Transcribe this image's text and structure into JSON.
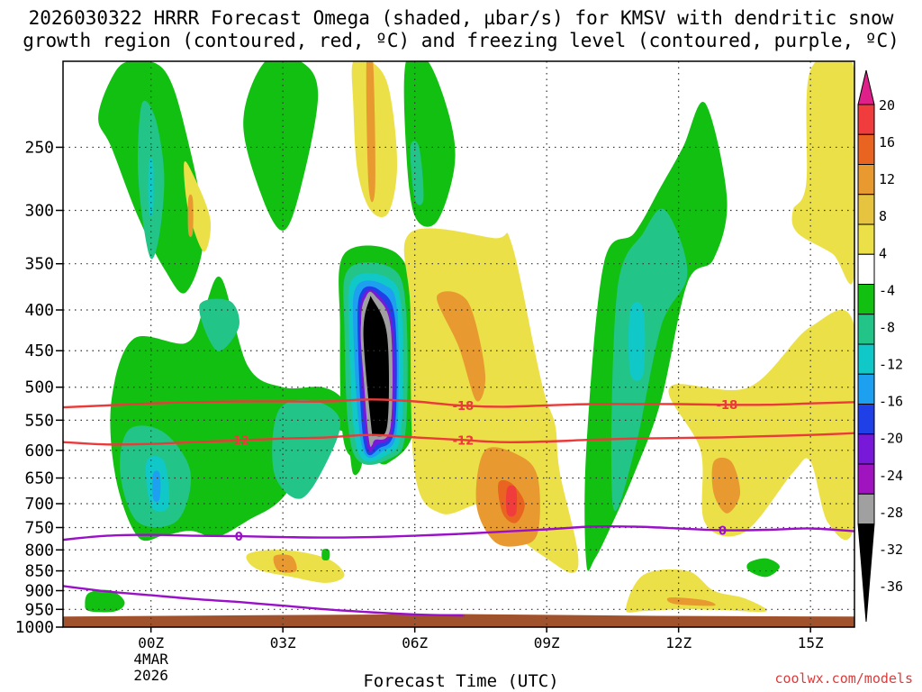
{
  "chart_data": {
    "type": "heatmap",
    "title_line1": "2026030322 HRRR Forecast Omega (shaded, µbar/s) for KMSV with dendritic snow",
    "title_line2": "growth region (contoured, red, ºC) and freezing level (contoured, purple, ºC)",
    "xlabel": "Forecast Time (UTC)",
    "credit": "coolwx.com/models",
    "xlim": [
      -2,
      16
    ],
    "ylim": [
      1000,
      195
    ],
    "y_ticks": [
      250,
      300,
      350,
      400,
      450,
      500,
      550,
      600,
      650,
      700,
      750,
      800,
      850,
      900,
      950,
      1000
    ],
    "y_tick_labels": [
      "250",
      "300",
      "350",
      "400",
      "450",
      "500",
      "550",
      "600",
      "650",
      "700",
      "750",
      "800",
      "850",
      "900",
      "950",
      "1000"
    ],
    "x_ticks": [
      0,
      3,
      6,
      9,
      12,
      15
    ],
    "x_tick_labels": [
      "00Z",
      "03Z",
      "06Z",
      "09Z",
      "12Z",
      "15Z"
    ],
    "date_label_line1": "4MAR",
    "date_label_line2": "2026",
    "colorbar_levels": [
      20,
      16,
      12,
      8,
      4,
      -4,
      -8,
      -12,
      -16,
      -20,
      -24,
      -28,
      -32,
      -36
    ],
    "colorbar_labels": [
      "20",
      "16",
      "12",
      "8",
      "4",
      "-4",
      "-8",
      "-12",
      "-16",
      "-20",
      "-24",
      "-28",
      "-32",
      "-36"
    ],
    "colorbar_colors": [
      "#e0208a",
      "#f03c3c",
      "#e86420",
      "#e89a30",
      "#e6c440",
      "#ece048",
      "#ffffff",
      "#12c012",
      "#22c488",
      "#10c8c8",
      "#1ea0f0",
      "#1e40e6",
      "#7818d8",
      "#a014c0",
      "#a0a0a0",
      "#000000"
    ],
    "contours_temperature": [
      {
        "label": "-18",
        "color": "#ea3a3a",
        "x": [
          -2,
          -1,
          0,
          1,
          2,
          3,
          4,
          5,
          6,
          7,
          8,
          9,
          10,
          11,
          12,
          13,
          14,
          15,
          16
        ],
        "p": [
          530,
          527,
          524,
          522,
          521,
          521,
          521,
          518,
          521,
          527,
          529,
          527,
          525,
          525,
          525,
          526,
          526,
          524,
          522
        ],
        "label_positions": [
          7.1,
          13.1
        ]
      },
      {
        "label": "-12",
        "color": "#ea3a3a",
        "x": [
          -2,
          -1,
          0,
          1,
          2,
          3,
          4,
          5,
          6,
          7,
          8,
          9,
          10,
          11,
          12,
          13,
          14,
          15,
          16
        ],
        "p": [
          586,
          590,
          589,
          586,
          583,
          580,
          578,
          574,
          578,
          582,
          586,
          585,
          582,
          580,
          579,
          578,
          576,
          574,
          571
        ],
        "label_positions": [
          2.0,
          7.1
        ]
      },
      {
        "label": "0",
        "color": "#9a10c8",
        "x": [
          -2,
          -1,
          0,
          1,
          2,
          3,
          4,
          5,
          6,
          7,
          8,
          9,
          10,
          11,
          12,
          13,
          14,
          15,
          16
        ],
        "p": [
          777,
          768,
          766,
          768,
          769,
          771,
          772,
          771,
          768,
          764,
          759,
          754,
          748,
          748,
          752,
          756,
          755,
          752,
          758
        ],
        "label_positions": [
          2.0,
          13.0
        ]
      },
      {
        "label": "",
        "color": "#9a10c8",
        "x": [
          -2,
          -1,
          0,
          1,
          2,
          3,
          4,
          5,
          6,
          7,
          7.1
        ],
        "p": [
          888,
          902,
          912,
          922,
          930,
          940,
          950,
          958,
          964,
          967,
          967
        ],
        "label_positions": []
      }
    ],
    "omega_regions": [
      {
        "level": -8,
        "x": [
          -0.5,
          0.3,
          0.8,
          1.2,
          0.8,
          0.3,
          -0.3,
          -0.9,
          -1.2,
          -0.9
        ],
        "p": [
          195,
          200,
          240,
          320,
          380,
          355,
          305,
          250,
          230,
          205
        ]
      },
      {
        "level": -12,
        "x": [
          -0.2,
          0.1,
          0.3,
          0.2,
          0.0,
          -0.2,
          -0.3
        ],
        "p": [
          220,
          230,
          270,
          320,
          345,
          305,
          260
        ]
      },
      {
        "level": -16,
        "x": [
          -0.05,
          0.05,
          0.05,
          -0.05
        ],
        "p": [
          262,
          262,
          300,
          300
        ]
      },
      {
        "level": 4,
        "x": [
          0.75,
          0.95,
          1.35,
          1.2,
          0.85
        ],
        "p": [
          262,
          270,
          308,
          338,
          300
        ]
      },
      {
        "level": 8,
        "x": [
          0.85,
          0.95,
          0.95,
          0.85
        ],
        "p": [
          290,
          290,
          320,
          320
        ]
      },
      {
        "level": -8,
        "x": [
          2.6,
          3.4,
          3.8,
          3.4,
          3.0,
          2.5,
          2.1
        ],
        "p": [
          195,
          195,
          215,
          282,
          318,
          286,
          232
        ]
      },
      {
        "level": 4,
        "x": [
          4.6,
          5.0,
          5.4,
          5.6,
          5.4,
          5.0,
          4.7,
          4.6
        ],
        "p": [
          195,
          195,
          210,
          262,
          302,
          300,
          268,
          220
        ]
      },
      {
        "level": 8,
        "x": [
          4.9,
          5.05,
          5.1,
          4.95
        ],
        "p": [
          195,
          195,
          280,
          280
        ]
      },
      {
        "level": -8,
        "x": [
          5.8,
          6.3,
          6.8,
          6.9,
          6.5,
          6.0,
          5.8
        ],
        "p": [
          195,
          195,
          230,
          265,
          310,
          305,
          250
        ]
      },
      {
        "level": -12,
        "x": [
          5.9,
          6.1,
          6.2,
          6.0
        ],
        "p": [
          250,
          250,
          290,
          290
        ]
      },
      {
        "level": -8,
        "x": [
          -0.4,
          0.8,
          1.2,
          1.6,
          2.2,
          3.0,
          3.9,
          4.4,
          4.6,
          4.8,
          4.6,
          4.4,
          3.8,
          3.0,
          2.2,
          1.5,
          0.9,
          0.3,
          -0.3,
          -0.8,
          -0.9
        ],
        "p": [
          435,
          440,
          400,
          365,
          470,
          500,
          500,
          520,
          560,
          620,
          642,
          570,
          586,
          688,
          735,
          770,
          757,
          767,
          770,
          650,
          520
        ]
      },
      {
        "level": -12,
        "x": [
          1.1,
          1.8,
          2.0,
          1.5
        ],
        "p": [
          395,
          390,
          420,
          450
        ]
      },
      {
        "level": -12,
        "x": [
          -0.5,
          0.3,
          0.9,
          0.6,
          -0.3,
          -0.7
        ],
        "p": [
          565,
          570,
          640,
          735,
          738,
          640
        ]
      },
      {
        "level": -16,
        "x": [
          -0.1,
          0.3,
          0.4,
          0.0
        ],
        "p": [
          620,
          620,
          705,
          705
        ]
      },
      {
        "level": -20,
        "x": [
          0.05,
          0.2,
          0.2,
          0.05
        ],
        "p": [
          642,
          642,
          690,
          690
        ]
      },
      {
        "level": -12,
        "x": [
          2.9,
          3.7,
          4.3,
          4.0,
          3.4,
          2.8
        ],
        "p": [
          535,
          520,
          550,
          620,
          690,
          640
        ]
      },
      {
        "level": -8,
        "x": [
          4.4,
          5.6,
          6.0,
          6.0,
          5.4,
          5.0,
          4.4,
          4.3
        ],
        "p": [
          340,
          340,
          400,
          560,
          622,
          612,
          590,
          420
        ]
      },
      {
        "level": -12,
        "x": [
          4.5,
          5.5,
          5.8,
          5.8,
          5.5,
          4.6,
          4.4
        ],
        "p": [
          355,
          355,
          400,
          560,
          612,
          604,
          420
        ]
      },
      {
        "level": -16,
        "x": [
          4.6,
          5.4,
          5.7,
          5.7,
          5.4,
          4.7,
          4.5
        ],
        "p": [
          365,
          365,
          400,
          560,
          606,
          600,
          420
        ]
      },
      {
        "level": -20,
        "x": [
          4.7,
          5.3,
          5.6,
          5.6,
          5.3,
          4.8,
          4.6
        ],
        "p": [
          372,
          372,
          400,
          560,
          600,
          594,
          420
        ]
      },
      {
        "level": -24,
        "x": [
          4.8,
          5.2,
          5.55,
          5.55,
          5.2,
          4.85,
          4.7
        ],
        "p": [
          378,
          378,
          410,
          560,
          596,
          590,
          420
        ]
      },
      {
        "level": -28,
        "x": [
          4.85,
          5.15,
          5.5,
          5.5,
          5.15,
          4.9,
          4.75
        ],
        "p": [
          382,
          382,
          420,
          560,
          590,
          585,
          420
        ]
      },
      {
        "level": -32,
        "x": [
          4.9,
          5.1,
          5.45,
          5.45,
          5.1,
          4.95,
          4.78
        ],
        "p": [
          384,
          384,
          420,
          560,
          582,
          578,
          420
        ]
      },
      {
        "level": -36,
        "x": [
          4.95,
          5.05,
          5.4,
          5.4,
          5.05,
          5.0,
          4.8
        ],
        "p": [
          386,
          386,
          430,
          560,
          578,
          574,
          430
        ]
      },
      {
        "level": 4,
        "x": [
          5.9,
          7.8,
          8.2,
          8.8,
          9.0,
          9.2,
          9.3,
          9.7,
          9.6,
          9.0,
          8.2,
          7.6,
          6.6,
          6.0,
          5.9
        ],
        "p": [
          320,
          325,
          330,
          470,
          520,
          560,
          640,
          800,
          855,
          820,
          760,
          700,
          720,
          640,
          400
        ]
      },
      {
        "level": 8,
        "x": [
          6.5,
          7.2,
          7.6,
          7.4,
          7.0
        ],
        "p": [
          385,
          390,
          480,
          520,
          445
        ]
      },
      {
        "level": 8,
        "x": [
          7.6,
          8.4,
          8.8,
          8.8,
          8.4,
          7.8,
          7.4
        ],
        "p": [
          600,
          610,
          650,
          760,
          790,
          780,
          700
        ]
      },
      {
        "level": 12,
        "x": [
          7.9,
          8.2,
          8.5,
          8.3,
          8.0
        ],
        "p": [
          660,
          660,
          700,
          740,
          720
        ]
      },
      {
        "level": 16,
        "x": [
          8.1,
          8.3,
          8.3,
          8.1
        ],
        "p": [
          670,
          670,
          720,
          720
        ]
      },
      {
        "level": -8,
        "x": [
          10.3,
          11.0,
          11.6,
          12.1,
          12.6,
          13.1,
          12.8,
          12.2,
          11.6,
          11.0,
          10.5,
          10.1,
          9.9,
          9.9
        ],
        "p": [
          350,
          320,
          280,
          250,
          220,
          290,
          345,
          370,
          520,
          640,
          740,
          820,
          830,
          600
        ]
      },
      {
        "level": -12,
        "x": [
          10.6,
          11.2,
          11.7,
          12.2,
          11.6,
          11.0,
          10.5
        ],
        "p": [
          380,
          320,
          300,
          360,
          420,
          600,
          700
        ]
      },
      {
        "level": -16,
        "x": [
          10.9,
          11.2,
          11.2,
          10.9
        ],
        "p": [
          400,
          400,
          480,
          480
        ]
      },
      {
        "level": 4,
        "x": [
          11.8,
          13.6,
          15.0,
          16.0,
          16.0,
          15.4,
          15.0,
          14.6,
          13.5,
          12.6,
          12.5
        ],
        "p": [
          500,
          500,
          420,
          420,
          740,
          740,
          620,
          640,
          760,
          740,
          600
        ]
      },
      {
        "level": 8,
        "x": [
          12.8,
          13.2,
          13.4,
          13.1,
          12.8
        ],
        "p": [
          620,
          620,
          680,
          720,
          680
        ]
      },
      {
        "level": 4,
        "x": [
          11.2,
          12.2,
          12.8,
          13.5,
          14.0,
          13.0,
          12.0,
          11.2,
          10.8
        ],
        "p": [
          860,
          850,
          900,
          920,
          955,
          952,
          950,
          955,
          950
        ]
      },
      {
        "level": 8,
        "x": [
          11.8,
          12.6,
          12.8,
          11.9
        ],
        "p": [
          918,
          925,
          940,
          935
        ]
      },
      {
        "level": -8,
        "x": [
          13.6,
          14.0,
          14.3,
          14.0,
          13.6
        ],
        "p": [
          830,
          820,
          840,
          865,
          850
        ]
      },
      {
        "level": 4,
        "x": [
          2.2,
          3.0,
          4.0,
          4.4,
          4.0,
          3.2,
          2.4
        ],
        "p": [
          810,
          800,
          820,
          860,
          880,
          865,
          845
        ]
      },
      {
        "level": 8,
        "x": [
          2.8,
          3.2,
          3.3,
          2.9
        ],
        "p": [
          815,
          815,
          850,
          850
        ]
      },
      {
        "level": -8,
        "x": [
          3.9,
          4.05,
          4.05,
          3.9
        ],
        "p": [
          800,
          800,
          822,
          822
        ]
      },
      {
        "level": -8,
        "x": [
          -1.4,
          -0.9,
          -0.6,
          -0.8,
          -1.4,
          -1.5
        ],
        "p": [
          905,
          900,
          930,
          955,
          955,
          935
        ]
      },
      {
        "level": 4,
        "x": [
          14.6,
          14.9,
          15.0,
          16.0,
          16.0,
          15.5,
          14.7
        ],
        "p": [
          300,
          278,
          200,
          200,
          360,
          340,
          320
        ]
      }
    ],
    "ground": {
      "color": "#a0522d",
      "top_p": [
        970,
        966,
        963,
        968,
        970
      ]
    }
  }
}
